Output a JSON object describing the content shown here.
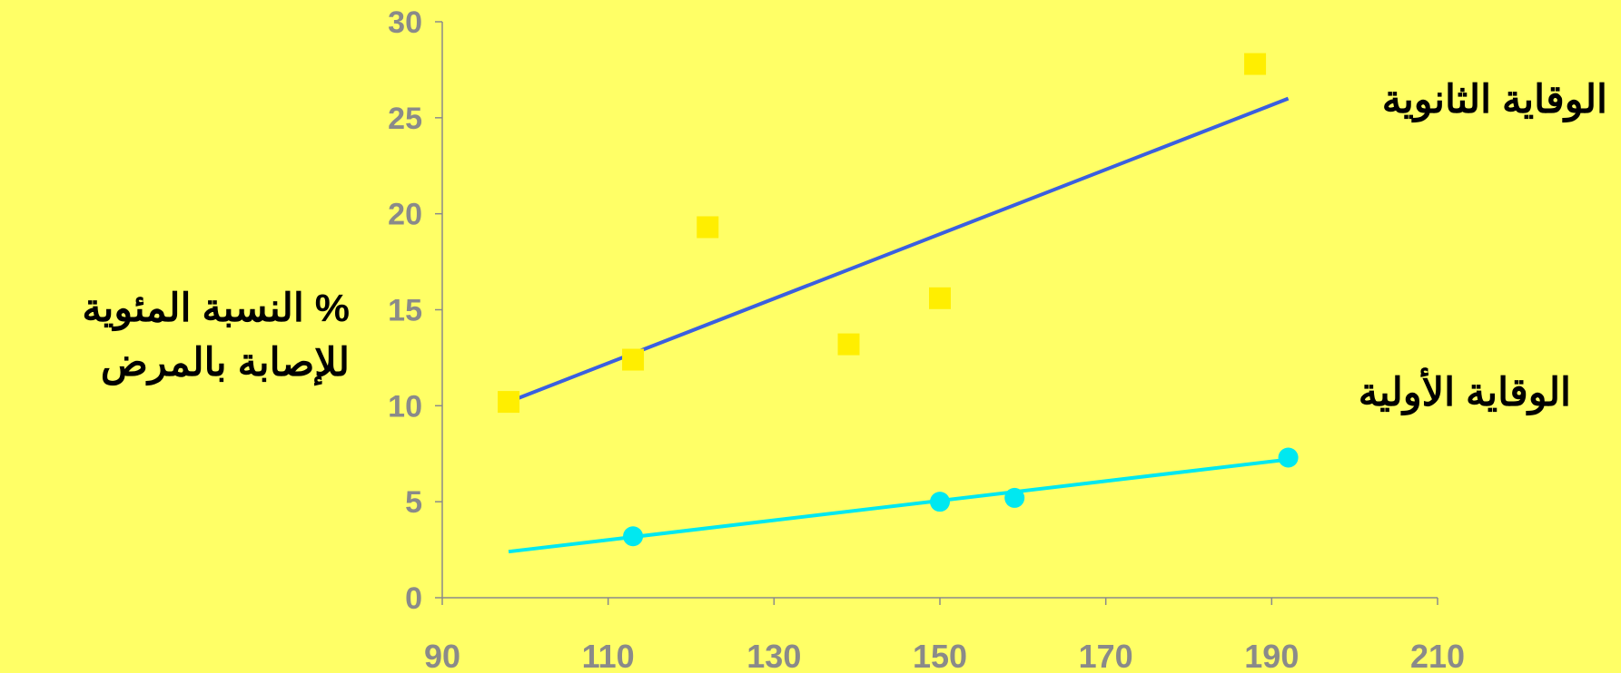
{
  "chart_data": {
    "type": "scatter",
    "ylabel_lines": [
      "% النسبة المئوية",
      "للإصابة  بالمرض"
    ],
    "xlabel": "",
    "xlim": [
      90,
      210
    ],
    "ylim": [
      0,
      30
    ],
    "x_ticks": [
      90,
      110,
      130,
      150,
      170,
      190,
      210
    ],
    "y_ticks": [
      0,
      5,
      10,
      15,
      20,
      25,
      30
    ],
    "grid": false,
    "series": [
      {
        "name": "الوقاية الثانوية",
        "marker": "square",
        "marker_color": "#ffee00",
        "line_color": "#3a5fe0",
        "points": [
          {
            "x": 98,
            "y": 10.2
          },
          {
            "x": 113,
            "y": 12.4
          },
          {
            "x": 122,
            "y": 19.3
          },
          {
            "x": 139,
            "y": 13.2
          },
          {
            "x": 150,
            "y": 15.6
          },
          {
            "x": 188,
            "y": 27.8
          }
        ],
        "trendline": [
          {
            "x": 98,
            "y": 10.2
          },
          {
            "x": 192,
            "y": 26.0
          }
        ]
      },
      {
        "name": "الوقاية الأولية",
        "marker": "circle",
        "marker_color": "#00e8f0",
        "line_color": "#00e8f0",
        "points": [
          {
            "x": 113,
            "y": 3.2
          },
          {
            "x": 150,
            "y": 5.0
          },
          {
            "x": 159,
            "y": 5.2
          },
          {
            "x": 192,
            "y": 7.3
          }
        ],
        "trendline": [
          {
            "x": 98,
            "y": 2.4
          },
          {
            "x": 192,
            "y": 7.2
          }
        ]
      }
    ]
  }
}
